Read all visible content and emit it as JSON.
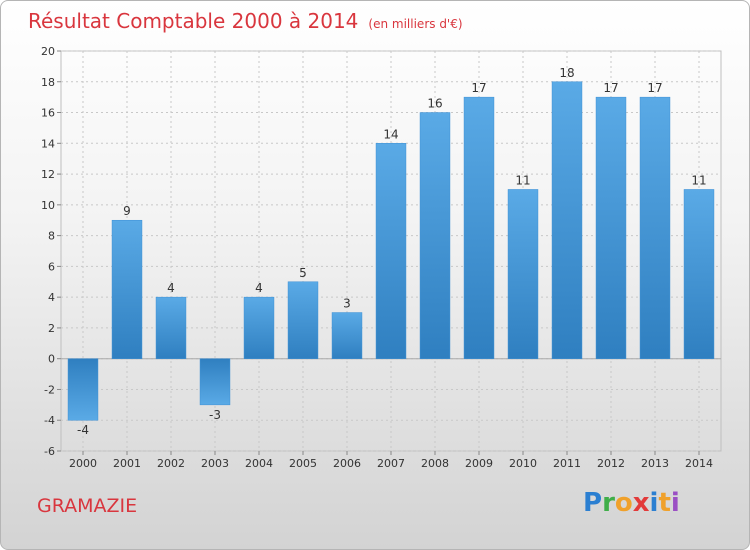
{
  "header": {
    "title": "Résultat Comptable 2000 à 2014",
    "subtitle": "(en milliers d'€)"
  },
  "footer": {
    "city": "GRAMAZIE",
    "logo_letters": [
      "P",
      "r",
      "o",
      "x",
      "i",
      "t",
      "i"
    ]
  },
  "colors": {
    "title": "#d9363e",
    "bar_top": "#5aaae6",
    "bar_bottom": "#2f7fc0",
    "grid": "#c8c8c8"
  },
  "chart_data": {
    "type": "bar",
    "title": "Résultat Comptable 2000 à 2014",
    "subtitle": "(en milliers d'€)",
    "xlabel": "",
    "ylabel": "",
    "categories": [
      "2000",
      "2001",
      "2002",
      "2003",
      "2004",
      "2005",
      "2006",
      "2007",
      "2008",
      "2009",
      "2010",
      "2011",
      "2012",
      "2013",
      "2014"
    ],
    "values": [
      -4,
      9,
      4,
      -3,
      4,
      5,
      3,
      14,
      16,
      17,
      11,
      18,
      17,
      17,
      11
    ],
    "ylim": [
      -6,
      20
    ],
    "yticks": [
      -6,
      -4,
      -2,
      0,
      2,
      4,
      6,
      8,
      10,
      12,
      14,
      16,
      18,
      20
    ],
    "grid": true,
    "legend": "none"
  }
}
